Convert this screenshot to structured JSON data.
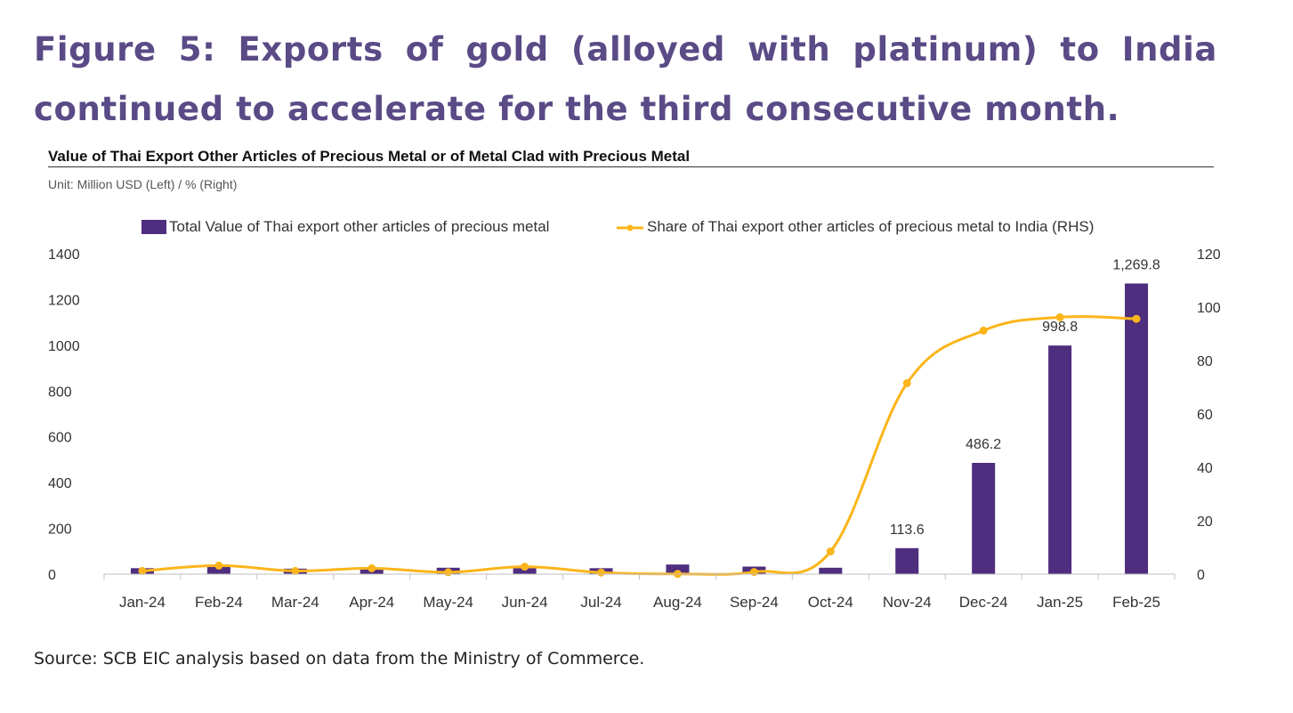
{
  "figure_title": "Figure 5: Exports of gold (alloyed with platinum) to India continued to accelerate for the third consecutive month.",
  "chart_title": "Value of Thai Export Other Articles of Precious Metal or of Metal Clad with Precious Metal",
  "unit": "Unit: Million USD (Left) / % (Right)",
  "source": "Source: SCB EIC analysis based on data from the Ministry of Commerce.",
  "colors": {
    "bar": "#4f2d7f",
    "line": "#fbb51a",
    "title": "#5a4a86"
  },
  "chart_data": {
    "type": "bar+line",
    "categories": [
      "Jan-24",
      "Feb-24",
      "Mar-24",
      "Apr-24",
      "May-24",
      "Jun-24",
      "Jul-24",
      "Aug-24",
      "Sep-24",
      "Oct-24",
      "Nov-24",
      "Dec-24",
      "Jan-25",
      "Feb-25"
    ],
    "series": [
      {
        "name": "Total Value of Thai export other articles of precious metal",
        "type": "bar",
        "axis": "left",
        "values": [
          26,
          33,
          24,
          23,
          28,
          26,
          26,
          42,
          33,
          28,
          113.6,
          486.2,
          998.8,
          1269.8
        ]
      },
      {
        "name": "Share of Thai export other articles of precious metal to India (RHS)",
        "type": "line",
        "axis": "right",
        "values": [
          1.2,
          3.2,
          1.2,
          2.2,
          0.7,
          2.8,
          0.6,
          0.1,
          0.8,
          8.5,
          71.5,
          91.2,
          96.2,
          95.6
        ]
      }
    ],
    "data_labels": [
      {
        "index": 10,
        "text": "113.6"
      },
      {
        "index": 11,
        "text": "486.2"
      },
      {
        "index": 12,
        "text": "998.8"
      },
      {
        "index": 13,
        "text": "1,269.8"
      }
    ],
    "y_left": {
      "min": 0,
      "max": 1400,
      "ticks": [
        "0",
        "200",
        "400",
        "600",
        "800",
        "1000",
        "1200",
        "1400"
      ]
    },
    "y_right": {
      "min": 0,
      "max": 120,
      "ticks": [
        "0",
        "20",
        "40",
        "60",
        "80",
        "100",
        "120"
      ]
    },
    "legend_position": "top-center",
    "grid": false
  }
}
